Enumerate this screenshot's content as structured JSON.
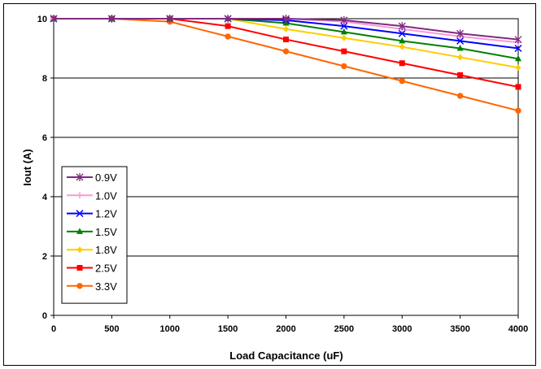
{
  "chart_data": {
    "type": "line",
    "title": "",
    "xlabel": "Load Capacitance (uF)",
    "ylabel": "Iout (A)",
    "x": [
      0,
      500,
      1000,
      1500,
      2000,
      2500,
      3000,
      3500,
      4000
    ],
    "xlim": [
      0,
      4000
    ],
    "ylim": [
      0,
      10
    ],
    "xticks": [
      "0",
      "500",
      "1000",
      "1500",
      "2000",
      "2500",
      "3000",
      "3500",
      "4000"
    ],
    "yticks": [
      "0",
      "2",
      "4",
      "6",
      "8",
      "10"
    ],
    "grid": "horizontal",
    "legend_position": "left",
    "series": [
      {
        "name": "0.9V",
        "color": "#7f2a7f",
        "marker": "asterisk",
        "values": [
          10,
          10,
          10,
          10,
          10,
          9.95,
          9.75,
          9.5,
          9.3
        ]
      },
      {
        "name": "1.0V",
        "color": "#f79ad6",
        "marker": "plus",
        "values": [
          10,
          10,
          10,
          10,
          10,
          9.9,
          9.65,
          9.4,
          9.2
        ]
      },
      {
        "name": "1.2V",
        "color": "#0000ff",
        "marker": "cross",
        "values": [
          10,
          10,
          10,
          10,
          9.95,
          9.75,
          9.5,
          9.25,
          9.0
        ]
      },
      {
        "name": "1.5V",
        "color": "#008000",
        "marker": "triangle",
        "values": [
          10,
          10,
          10,
          10,
          9.85,
          9.55,
          9.25,
          9.0,
          8.65
        ]
      },
      {
        "name": "1.8V",
        "color": "#ffcc00",
        "marker": "diamond",
        "values": [
          10,
          10,
          10,
          10,
          9.65,
          9.35,
          9.05,
          8.7,
          8.35
        ]
      },
      {
        "name": "2.5V",
        "color": "#ff0000",
        "marker": "square",
        "values": [
          10,
          10,
          10,
          9.75,
          9.3,
          8.9,
          8.5,
          8.1,
          7.7
        ]
      },
      {
        "name": "3.3V",
        "color": "#ff6600",
        "marker": "circle",
        "values": [
          10,
          10,
          9.9,
          9.4,
          8.9,
          8.4,
          7.9,
          7.4,
          6.9
        ]
      }
    ]
  }
}
